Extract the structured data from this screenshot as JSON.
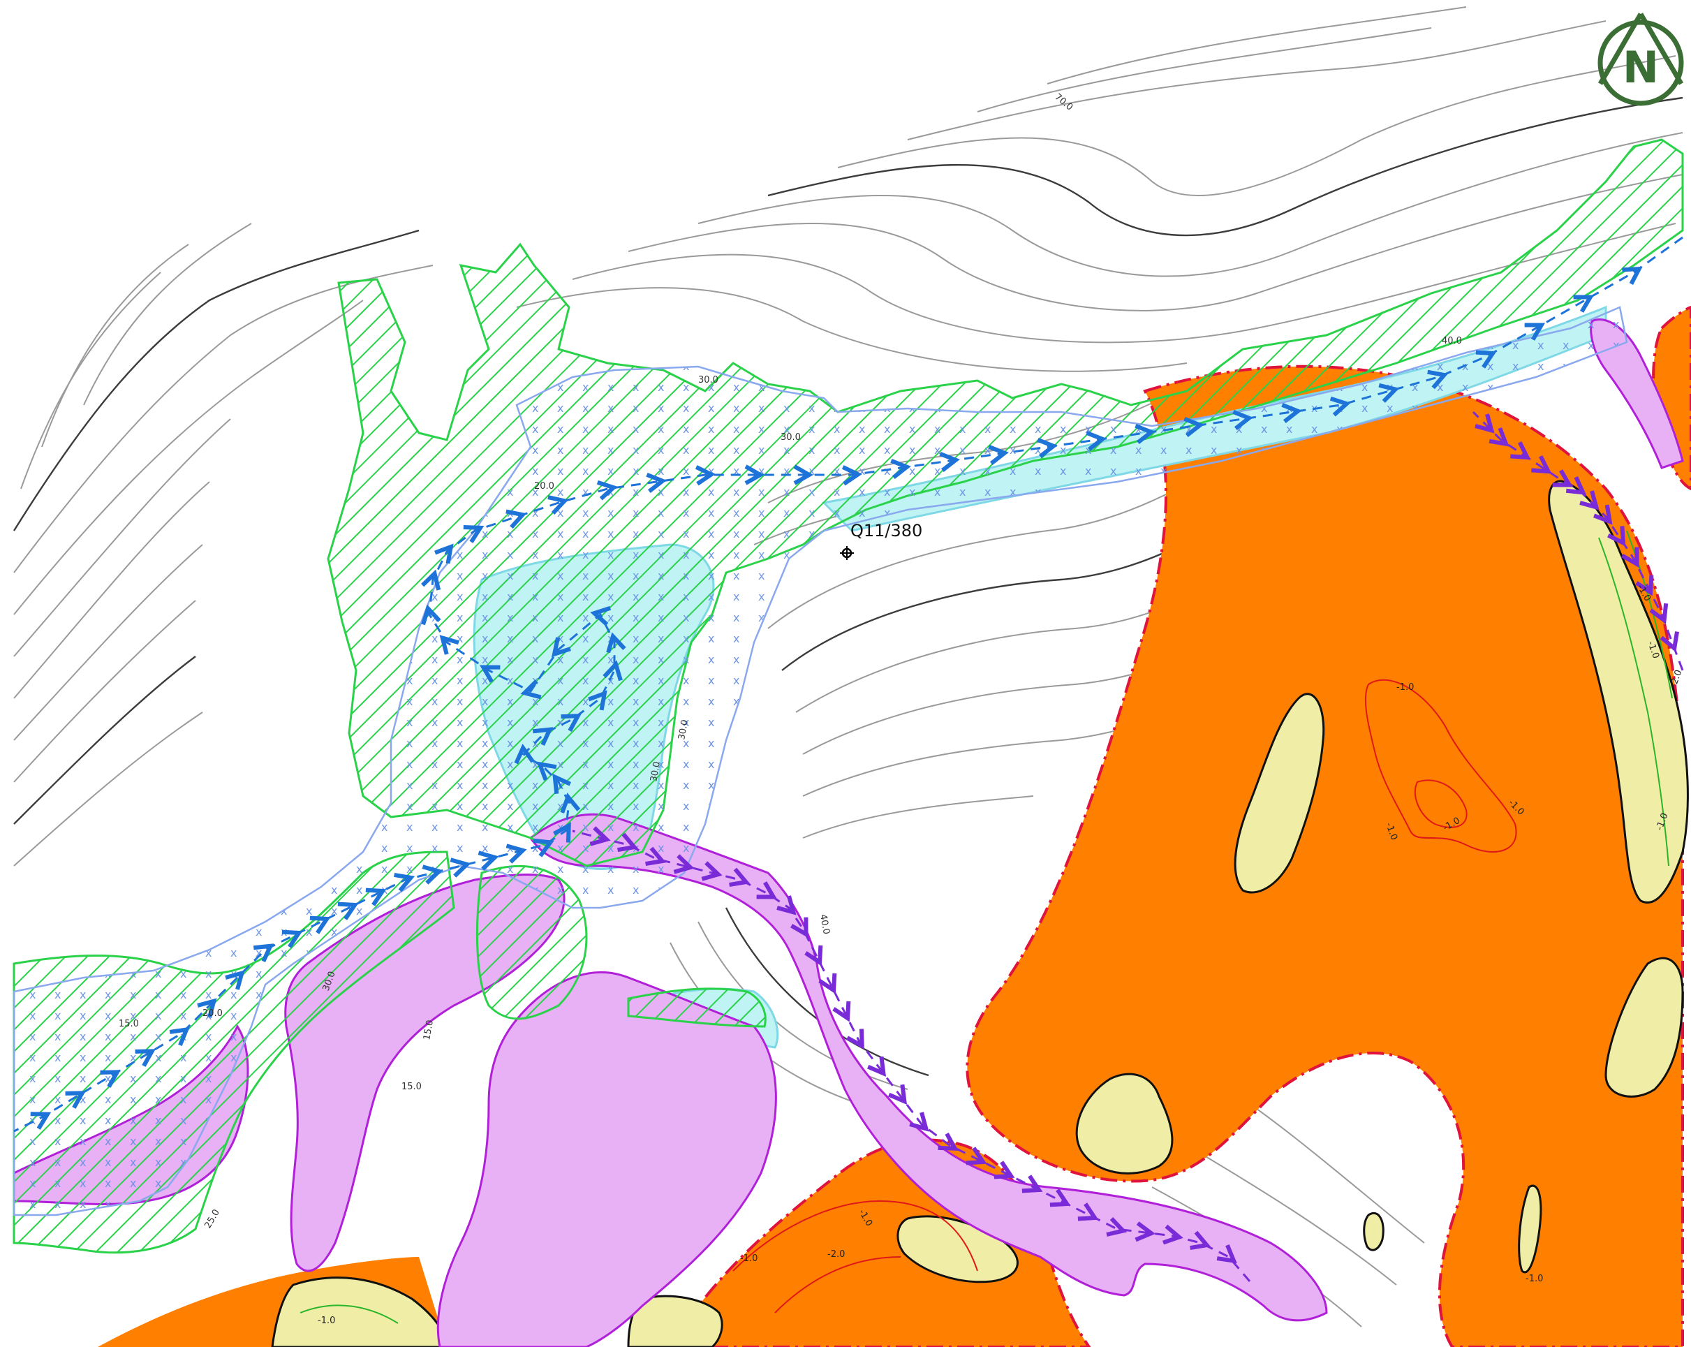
{
  "map": {
    "reference_label": "Q11/380",
    "north_letter": "N",
    "contour_labels": [
      "70.0",
      "40.0",
      "30.0",
      "30.0",
      "20.0",
      "30.0",
      "30.0",
      "40.0",
      "30.0",
      "15.0",
      "20.0",
      "15.0",
      "15.0",
      "25.0"
    ],
    "depth_labels": [
      "-1.0",
      "-1.0",
      "-1.0",
      "-1.0",
      "-1.0",
      "-2.0",
      "-1.0",
      "-1.0",
      "-1.0",
      "-1.0",
      "-2.0",
      "-1.0",
      "-1.0"
    ],
    "colors": {
      "orange_zone": "#ff7f00",
      "sand_island": "#f0eda6",
      "green_hatch": "#2ad24a",
      "cyan_fill": "#bff3f4",
      "purple_zone": "#e8b0f5",
      "blue_route": "#1e73d8",
      "purple_route": "#7a2bd8",
      "boundary_red": "#e0133c",
      "north_arrow": "#3b6e34"
    }
  }
}
